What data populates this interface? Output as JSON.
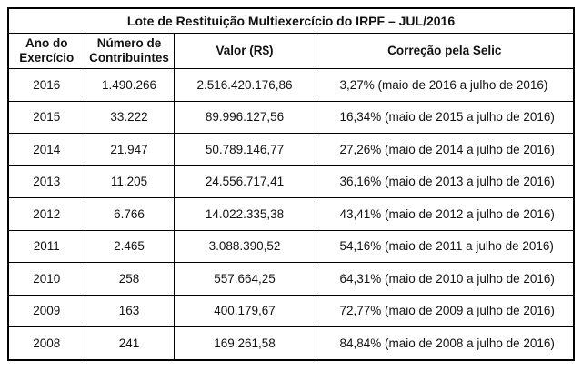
{
  "table": {
    "title": "Lote de Restituição Multiexercício do IRPF – JUL/2016",
    "headers": {
      "ano": "Ano do Exercício",
      "numero": "Número de Contribuintes",
      "valor": "Valor (R$)",
      "correcao": "Correção pela Selic"
    },
    "rows": [
      {
        "ano": "2016",
        "numero": "1.490.266",
        "valor": "2.516.420.176,86",
        "correcao": "3,27% (maio de 2016 a julho de 2016)"
      },
      {
        "ano": "2015",
        "numero": "33.222",
        "valor": "89.996.127,56",
        "correcao": "16,34% (maio de 2015 a julho de 2016)"
      },
      {
        "ano": "2014",
        "numero": "21.947",
        "valor": "50.789.146,77",
        "correcao": "27,26% (maio de 2014 a julho de 2016)"
      },
      {
        "ano": "2013",
        "numero": "11.205",
        "valor": "24.556.717,41",
        "correcao": "36,16% (maio de 2013 a julho de 2016)"
      },
      {
        "ano": "2012",
        "numero": "6.766",
        "valor": "14.022.335,38",
        "correcao": "43,41% (maio de 2012 a julho de 2016)"
      },
      {
        "ano": "2011",
        "numero": "2.465",
        "valor": "3.088.390,52",
        "correcao": "54,16% (maio de 2011 a julho de 2016)"
      },
      {
        "ano": "2010",
        "numero": "258",
        "valor": "557.664,25",
        "correcao": "64,31% (maio de 2010 a julho de 2016)"
      },
      {
        "ano": "2009",
        "numero": "163",
        "valor": "400.179,67",
        "correcao": "72,77% (maio de 2009 a julho de 2016)"
      },
      {
        "ano": "2008",
        "numero": "241",
        "valor": "169.261,58",
        "correcao": "84,84% (maio de 2008 a julho de 2016)"
      }
    ]
  }
}
